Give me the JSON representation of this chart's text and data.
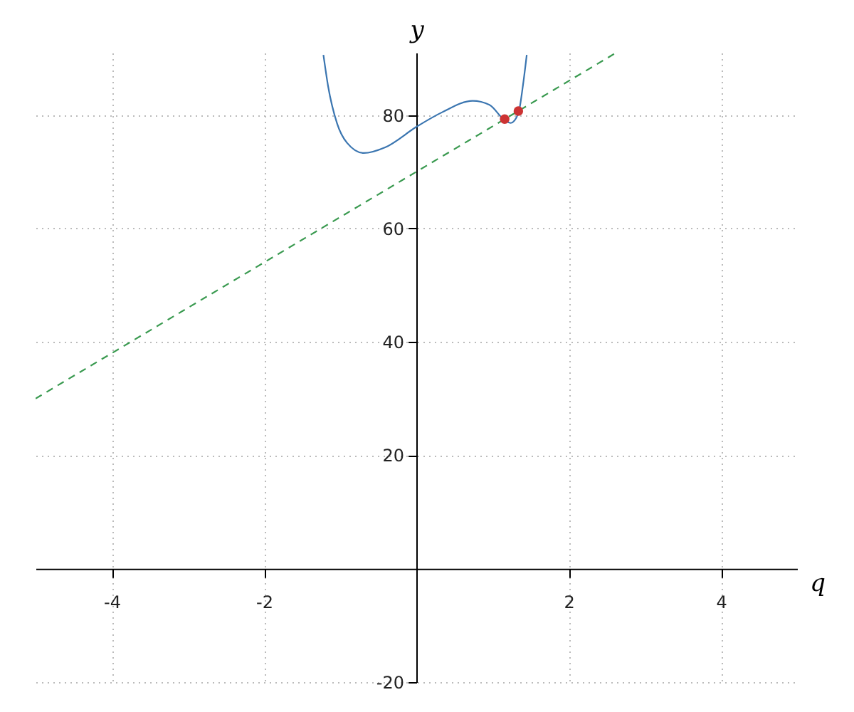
{
  "chart_data": {
    "type": "line",
    "xlabel": "q",
    "ylabel": "y",
    "xlim": [
      -5,
      5
    ],
    "ylim": [
      -20,
      91
    ],
    "xticks": [
      -4,
      -2,
      2,
      4
    ],
    "yticks": [
      -20,
      20,
      40,
      60,
      80
    ],
    "grid": true,
    "series": [
      {
        "type": "line",
        "color": "#3a75b0",
        "line_style": "solid",
        "x": [
          -1.22,
          -1.16,
          -1.04,
          -0.91,
          -0.69,
          -0.41,
          0.01,
          0.34,
          0.74,
          0.96,
          1.16,
          1.24,
          1.34,
          1.4,
          1.45
        ],
        "values": [
          90.6,
          85.2,
          78.5,
          75.1,
          73.3,
          74.3,
          78.0,
          80.5,
          82.5,
          81.8,
          79.1,
          78.6,
          80.3,
          85.2,
          90.6
        ]
      },
      {
        "type": "line",
        "color": "#3a9a50",
        "line_style": "dashed",
        "x": [
          -5,
          2.625
        ],
        "values": [
          30,
          91
        ]
      },
      {
        "type": "scatter",
        "color": "#cc3333",
        "marker": "circle",
        "x": [
          1.16,
          1.34
        ],
        "values": [
          79.3,
          80.7
        ]
      }
    ]
  }
}
